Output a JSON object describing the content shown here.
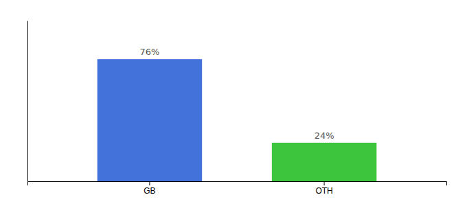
{
  "chart_data": {
    "type": "bar",
    "categories": [
      "GB",
      "OTH"
    ],
    "values": [
      76,
      24
    ],
    "value_labels": [
      "76%",
      "24%"
    ],
    "colors": [
      "#4472db",
      "#3dc63d"
    ],
    "ylim": [
      0,
      100
    ],
    "data_labels": true,
    "tick_labels": "x"
  }
}
